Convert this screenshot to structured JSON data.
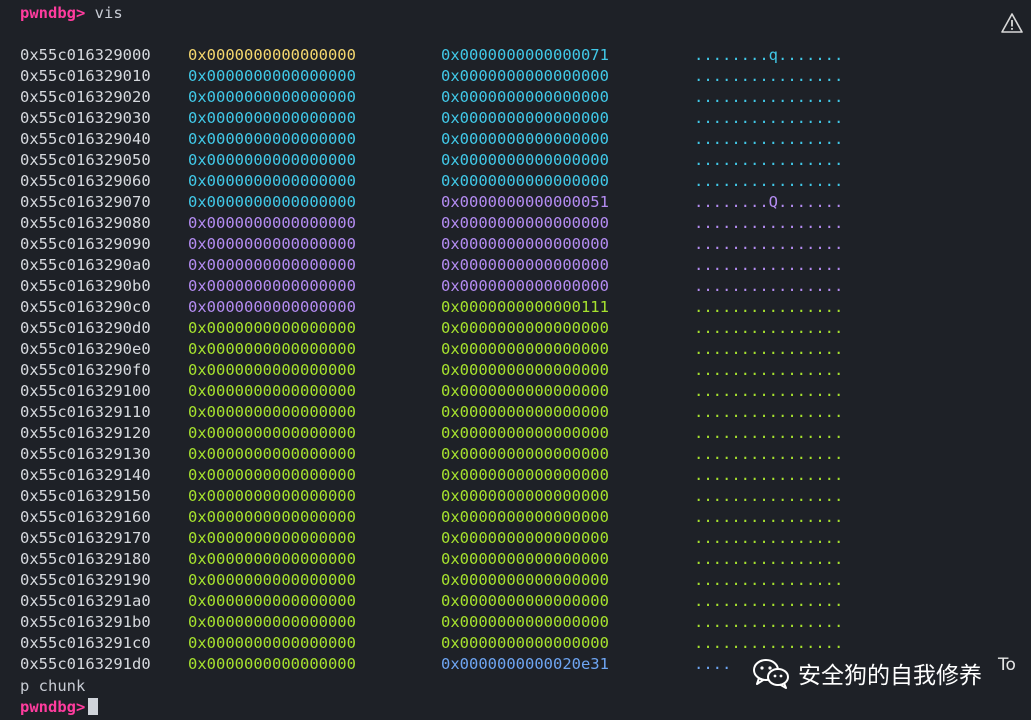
{
  "header": {
    "prompt": "pwndbg>",
    "command": "vis"
  },
  "rows": [
    {
      "addr": "0x55c016329000",
      "q1": "0x0000000000000000",
      "q2": "0x0000000000000071",
      "ascii": "........q.......",
      "c1": "yellow",
      "c2": "cyan",
      "c3": "cyan"
    },
    {
      "addr": "0x55c016329010",
      "q1": "0x0000000000000000",
      "q2": "0x0000000000000000",
      "ascii": "................",
      "c1": "cyan",
      "c2": "cyan",
      "c3": "cyan"
    },
    {
      "addr": "0x55c016329020",
      "q1": "0x0000000000000000",
      "q2": "0x0000000000000000",
      "ascii": "................",
      "c1": "cyan",
      "c2": "cyan",
      "c3": "cyan"
    },
    {
      "addr": "0x55c016329030",
      "q1": "0x0000000000000000",
      "q2": "0x0000000000000000",
      "ascii": "................",
      "c1": "cyan",
      "c2": "cyan",
      "c3": "cyan"
    },
    {
      "addr": "0x55c016329040",
      "q1": "0x0000000000000000",
      "q2": "0x0000000000000000",
      "ascii": "................",
      "c1": "cyan",
      "c2": "cyan",
      "c3": "cyan"
    },
    {
      "addr": "0x55c016329050",
      "q1": "0x0000000000000000",
      "q2": "0x0000000000000000",
      "ascii": "................",
      "c1": "cyan",
      "c2": "cyan",
      "c3": "cyan"
    },
    {
      "addr": "0x55c016329060",
      "q1": "0x0000000000000000",
      "q2": "0x0000000000000000",
      "ascii": "................",
      "c1": "cyan",
      "c2": "cyan",
      "c3": "cyan"
    },
    {
      "addr": "0x55c016329070",
      "q1": "0x0000000000000000",
      "q2": "0x0000000000000051",
      "ascii": "........Q.......",
      "c1": "cyan",
      "c2": "purple",
      "c3": "purple"
    },
    {
      "addr": "0x55c016329080",
      "q1": "0x0000000000000000",
      "q2": "0x0000000000000000",
      "ascii": "................",
      "c1": "purple",
      "c2": "purple",
      "c3": "purple"
    },
    {
      "addr": "0x55c016329090",
      "q1": "0x0000000000000000",
      "q2": "0x0000000000000000",
      "ascii": "................",
      "c1": "purple",
      "c2": "purple",
      "c3": "purple"
    },
    {
      "addr": "0x55c0163290a0",
      "q1": "0x0000000000000000",
      "q2": "0x0000000000000000",
      "ascii": "................",
      "c1": "purple",
      "c2": "purple",
      "c3": "purple"
    },
    {
      "addr": "0x55c0163290b0",
      "q1": "0x0000000000000000",
      "q2": "0x0000000000000000",
      "ascii": "................",
      "c1": "purple",
      "c2": "purple",
      "c3": "purple"
    },
    {
      "addr": "0x55c0163290c0",
      "q1": "0x0000000000000000",
      "q2": "0x0000000000000111",
      "ascii": "................",
      "c1": "purple",
      "c2": "green",
      "c3": "green"
    },
    {
      "addr": "0x55c0163290d0",
      "q1": "0x0000000000000000",
      "q2": "0x0000000000000000",
      "ascii": "................",
      "c1": "green",
      "c2": "green",
      "c3": "green"
    },
    {
      "addr": "0x55c0163290e0",
      "q1": "0x0000000000000000",
      "q2": "0x0000000000000000",
      "ascii": "................",
      "c1": "green",
      "c2": "green",
      "c3": "green"
    },
    {
      "addr": "0x55c0163290f0",
      "q1": "0x0000000000000000",
      "q2": "0x0000000000000000",
      "ascii": "................",
      "c1": "green",
      "c2": "green",
      "c3": "green"
    },
    {
      "addr": "0x55c016329100",
      "q1": "0x0000000000000000",
      "q2": "0x0000000000000000",
      "ascii": "................",
      "c1": "green",
      "c2": "green",
      "c3": "green"
    },
    {
      "addr": "0x55c016329110",
      "q1": "0x0000000000000000",
      "q2": "0x0000000000000000",
      "ascii": "................",
      "c1": "green",
      "c2": "green",
      "c3": "green"
    },
    {
      "addr": "0x55c016329120",
      "q1": "0x0000000000000000",
      "q2": "0x0000000000000000",
      "ascii": "................",
      "c1": "green",
      "c2": "green",
      "c3": "green"
    },
    {
      "addr": "0x55c016329130",
      "q1": "0x0000000000000000",
      "q2": "0x0000000000000000",
      "ascii": "................",
      "c1": "green",
      "c2": "green",
      "c3": "green"
    },
    {
      "addr": "0x55c016329140",
      "q1": "0x0000000000000000",
      "q2": "0x0000000000000000",
      "ascii": "................",
      "c1": "green",
      "c2": "green",
      "c3": "green"
    },
    {
      "addr": "0x55c016329150",
      "q1": "0x0000000000000000",
      "q2": "0x0000000000000000",
      "ascii": "................",
      "c1": "green",
      "c2": "green",
      "c3": "green"
    },
    {
      "addr": "0x55c016329160",
      "q1": "0x0000000000000000",
      "q2": "0x0000000000000000",
      "ascii": "................",
      "c1": "green",
      "c2": "green",
      "c3": "green"
    },
    {
      "addr": "0x55c016329170",
      "q1": "0x0000000000000000",
      "q2": "0x0000000000000000",
      "ascii": "................",
      "c1": "green",
      "c2": "green",
      "c3": "green"
    },
    {
      "addr": "0x55c016329180",
      "q1": "0x0000000000000000",
      "q2": "0x0000000000000000",
      "ascii": "................",
      "c1": "green",
      "c2": "green",
      "c3": "green"
    },
    {
      "addr": "0x55c016329190",
      "q1": "0x0000000000000000",
      "q2": "0x0000000000000000",
      "ascii": "................",
      "c1": "green",
      "c2": "green",
      "c3": "green"
    },
    {
      "addr": "0x55c0163291a0",
      "q1": "0x0000000000000000",
      "q2": "0x0000000000000000",
      "ascii": "................",
      "c1": "green",
      "c2": "green",
      "c3": "green"
    },
    {
      "addr": "0x55c0163291b0",
      "q1": "0x0000000000000000",
      "q2": "0x0000000000000000",
      "ascii": "................",
      "c1": "green",
      "c2": "green",
      "c3": "green"
    },
    {
      "addr": "0x55c0163291c0",
      "q1": "0x0000000000000000",
      "q2": "0x0000000000000000",
      "ascii": "................",
      "c1": "green",
      "c2": "green",
      "c3": "green"
    },
    {
      "addr": "0x55c0163291d0",
      "q1": "0x0000000000000000",
      "q2": "0x0000000000020e31",
      "ascii": "....",
      "c1": "green",
      "c2": "blue",
      "c3": "blue"
    }
  ],
  "command_line": "p chunk",
  "footer": {
    "prompt": "pwndbg>"
  },
  "watermark": {
    "text": "安全狗的自我修养",
    "suffix": "To"
  },
  "colors": {
    "yellow": "#f5d76e",
    "cyan": "#41c9e8",
    "purple": "#b48cf2",
    "green": "#a6e22e",
    "blue": "#6ea5f2",
    "prompt": "#ff3c9e",
    "background": "#1e2127"
  }
}
